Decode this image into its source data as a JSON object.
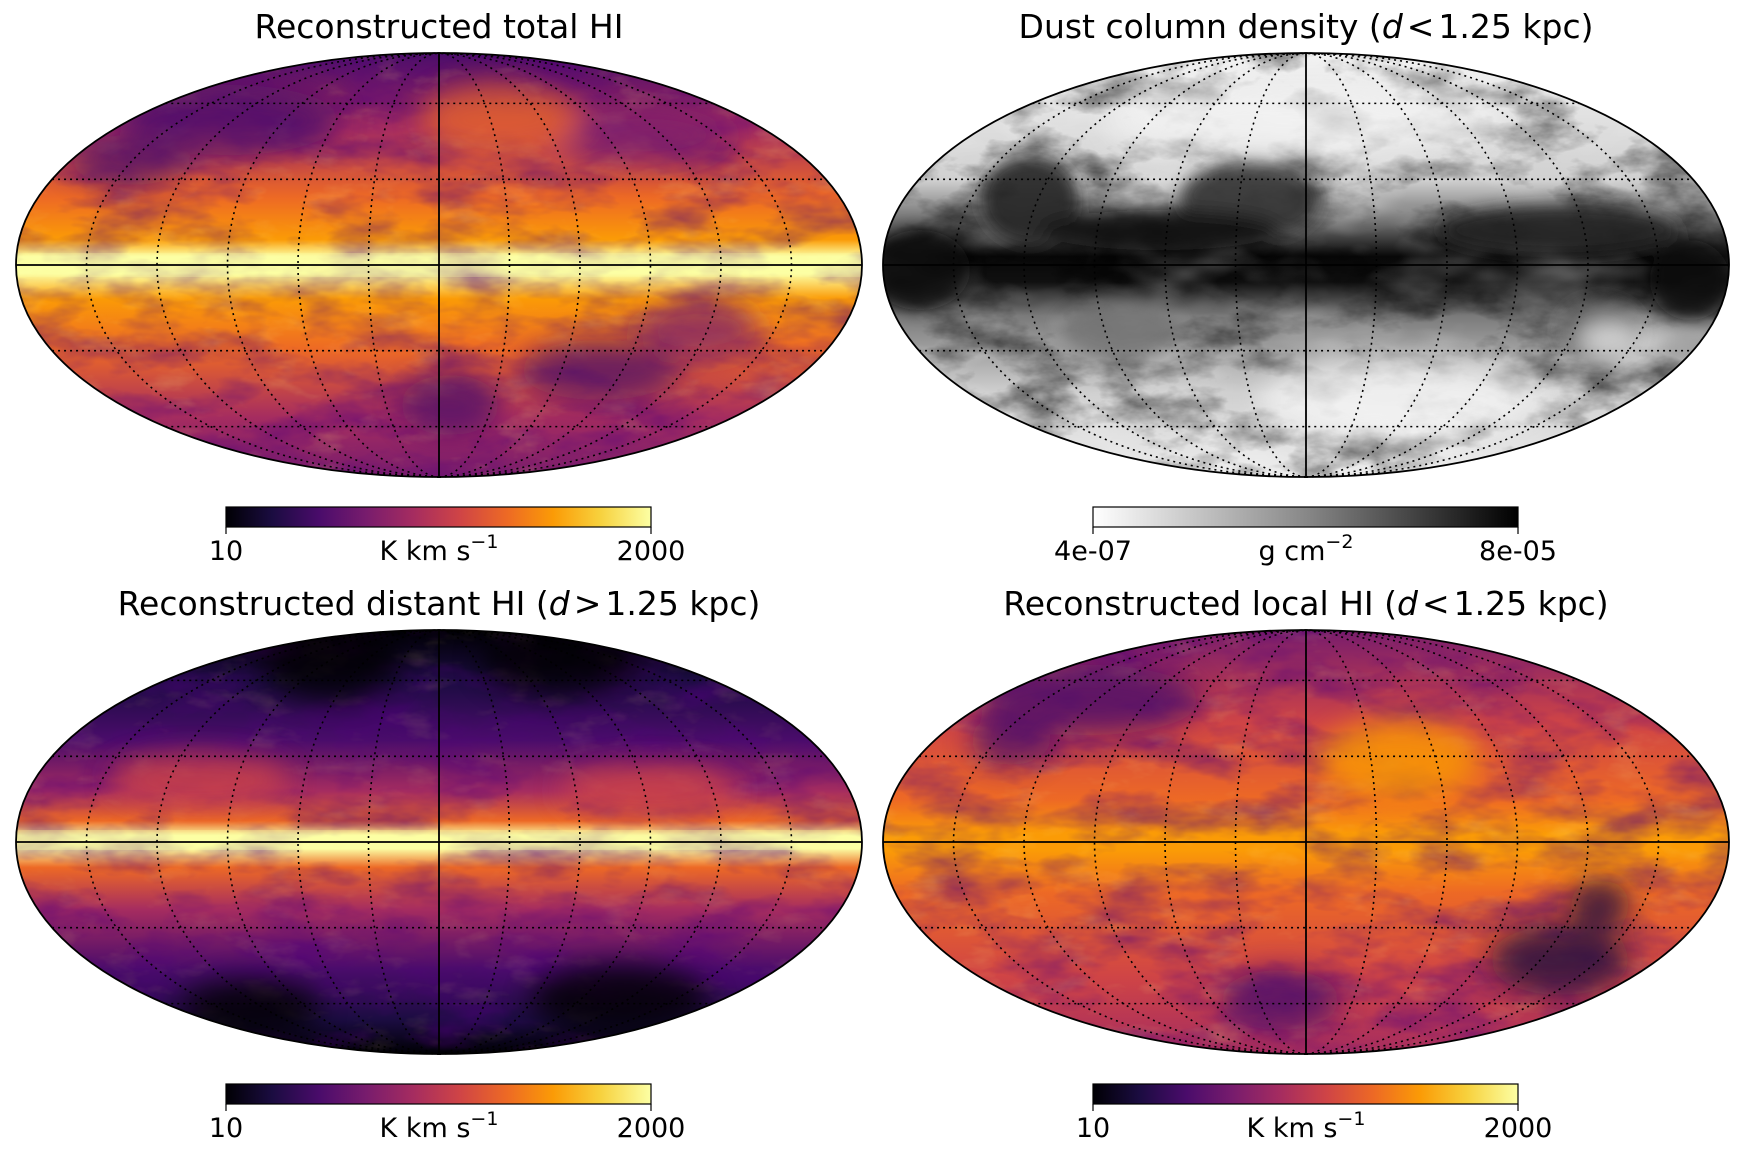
{
  "panels": [
    {
      "title": "Reconstructed total HI",
      "colorbar": {
        "min": "10",
        "max": "2000",
        "unit": "K km s",
        "unit_sup": "−1",
        "cmap": "inferno"
      }
    },
    {
      "title_pre": "Dust column density (",
      "title_var": "d",
      "title_op": "<",
      "title_post": "1.25 kpc)",
      "colorbar": {
        "min": "4e-07",
        "max": "8e-05",
        "unit": "g cm",
        "unit_sup": "−2",
        "cmap": "gray_r"
      }
    },
    {
      "title_pre": "Reconstructed distant HI (",
      "title_var": "d",
      "title_op": ">",
      "title_post": "1.25 kpc)",
      "colorbar": {
        "min": "10",
        "max": "2000",
        "unit": "K km s",
        "unit_sup": "−1",
        "cmap": "inferno"
      }
    },
    {
      "title_pre": "Reconstructed local HI (",
      "title_var": "d",
      "title_op": "<",
      "title_post": "1.25 kpc)",
      "colorbar": {
        "min": "10",
        "max": "2000",
        "unit": "K km s",
        "unit_sup": "−1",
        "cmap": "inferno"
      }
    }
  ],
  "colors": {
    "inferno": [
      "#000004",
      "#1b0c41",
      "#4a0c6b",
      "#781c6d",
      "#a52c60",
      "#cf4446",
      "#ed6925",
      "#fb9b06",
      "#f7d13d",
      "#fcffa4"
    ],
    "gray_r": [
      "#ffffff",
      "#bdbdbd",
      "#777777",
      "#303030",
      "#000000"
    ]
  }
}
